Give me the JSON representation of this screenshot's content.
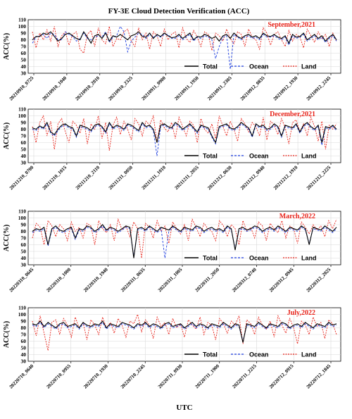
{
  "figure": {
    "title": "FY-3E Cloud Detection Verification (ACC)",
    "xlabel": "UTC"
  },
  "colors": {
    "total": "#000000",
    "ocean": "#1f3fe0",
    "land": "#e8241b",
    "season": "#e8241b",
    "grid": "#d9d9d9"
  },
  "legend": [
    "Total",
    "Ocean",
    "Land"
  ],
  "chart_data": [
    {
      "type": "line",
      "season": "September,2021",
      "ylabel": "ACC(%)",
      "ylim": [
        30,
        110
      ],
      "yticks": [
        30,
        40,
        50,
        60,
        70,
        80,
        90,
        100,
        110
      ],
      "grid": true,
      "legend_position": "bottom-right",
      "xticks": [
        "20210910_0725",
        "20210910_1040",
        "20210910_2010",
        "20210910_2325",
        "20210911_0900",
        "20210911_1950",
        "20210911_2305",
        "20210912_0835",
        "20210912_1930",
        "20210912_2245"
      ],
      "series": [
        {
          "name": "Total",
          "values": [
            80,
            85,
            85,
            90,
            88,
            92,
            85,
            78,
            82,
            88,
            90,
            86,
            82,
            80,
            92,
            84,
            75,
            86,
            88,
            82,
            90,
            78,
            86,
            84,
            88,
            84,
            80,
            86,
            88,
            92,
            85,
            84,
            90,
            82,
            88,
            85,
            90,
            86,
            83,
            84,
            88,
            82,
            86,
            90,
            80,
            85,
            84,
            88,
            86,
            82,
            85,
            78,
            86,
            88,
            82,
            90,
            85,
            82,
            86,
            88,
            84,
            86,
            82,
            90,
            86,
            85,
            88,
            84,
            82,
            86,
            75,
            88,
            84,
            85,
            90,
            80,
            84,
            88,
            82,
            86,
            78,
            84,
            88,
            80
          ]
        },
        {
          "name": "Ocean",
          "values": [
            75,
            84,
            86,
            88,
            82,
            90,
            88,
            80,
            80,
            92,
            88,
            85,
            78,
            82,
            90,
            82,
            80,
            84,
            86,
            84,
            92,
            76,
            84,
            86,
            100,
            92,
            62,
            78,
            84,
            90,
            88,
            82,
            88,
            84,
            86,
            84,
            88,
            88,
            82,
            82,
            86,
            80,
            84,
            88,
            78,
            84,
            82,
            86,
            84,
            80,
            52,
            70,
            84,
            86,
            36,
            88,
            84,
            80,
            84,
            86,
            82,
            84,
            80,
            88,
            84,
            84,
            86,
            82,
            80,
            84,
            72,
            86,
            82,
            84,
            88,
            78,
            82,
            86,
            80,
            84,
            76,
            82,
            86,
            78
          ]
        },
        {
          "name": "Land",
          "values": [
            92,
            68,
            90,
            80,
            95,
            78,
            100,
            70,
            86,
            92,
            72,
            88,
            92,
            66,
            60,
            88,
            94,
            70,
            98,
            80,
            74,
            100,
            70,
            82,
            80,
            92,
            96,
            78,
            70,
            98,
            80,
            90,
            66,
            92,
            86,
            70,
            96,
            80,
            88,
            92,
            68,
            98,
            82,
            76,
            94,
            84,
            70,
            92,
            88,
            64,
            90,
            86,
            78,
            96,
            82,
            74,
            92,
            88,
            70,
            96,
            84,
            80,
            66,
            98,
            90,
            72,
            88,
            92,
            80,
            70,
            94,
            78,
            88,
            84,
            68,
            96,
            86,
            76,
            92,
            82,
            88,
            70,
            90,
            78
          ]
        }
      ]
    },
    {
      "type": "line",
      "season": "December,2021",
      "ylabel": "ACC(%)",
      "ylim": [
        30,
        110
      ],
      "yticks": [
        30,
        40,
        50,
        60,
        70,
        80,
        90,
        100,
        110
      ],
      "grid": true,
      "legend_position": "bottom-right",
      "xticks": [
        "20211210_0700",
        "20211210_1015",
        "20211210_2110",
        "20211211_0050",
        "20211211_1010",
        "20211211_2055",
        "20211212_0630",
        "20211212_0940",
        "20211212_1910",
        "20211212_2225"
      ],
      "series": [
        {
          "name": "Total",
          "values": [
            82,
            80,
            85,
            82,
            90,
            76,
            72,
            80,
            86,
            88,
            84,
            82,
            70,
            86,
            84,
            82,
            78,
            86,
            88,
            84,
            76,
            90,
            82,
            86,
            84,
            80,
            88,
            86,
            82,
            78,
            90,
            84,
            86,
            80,
            60,
            86,
            88,
            84,
            82,
            90,
            86,
            80,
            84,
            88,
            82,
            76,
            86,
            84,
            82,
            70,
            60,
            84,
            86,
            88,
            82,
            80,
            84,
            90,
            86,
            82,
            70,
            88,
            84,
            86,
            80,
            82,
            88,
            84,
            70,
            86,
            84,
            82,
            88,
            76,
            86,
            90,
            84,
            80,
            86,
            60,
            84,
            82,
            86,
            80
          ]
        },
        {
          "name": "Ocean",
          "values": [
            80,
            78,
            84,
            80,
            88,
            74,
            70,
            78,
            84,
            86,
            82,
            80,
            68,
            84,
            82,
            80,
            76,
            84,
            86,
            82,
            74,
            88,
            80,
            84,
            82,
            78,
            86,
            84,
            80,
            76,
            88,
            82,
            84,
            78,
            40,
            84,
            86,
            82,
            80,
            88,
            84,
            78,
            82,
            86,
            80,
            74,
            84,
            82,
            80,
            68,
            58,
            82,
            84,
            86,
            80,
            78,
            82,
            88,
            84,
            80,
            68,
            86,
            82,
            84,
            78,
            80,
            86,
            82,
            68,
            84,
            82,
            80,
            86,
            74,
            84,
            88,
            82,
            78,
            84,
            56,
            82,
            80,
            84,
            78
          ]
        },
        {
          "name": "Land",
          "values": [
            84,
            60,
            90,
            100,
            70,
            92,
            50,
            88,
            96,
            76,
            60,
            92,
            86,
            74,
            96,
            58,
            88,
            80,
            100,
            66,
            90,
            48,
            86,
            98,
            72,
            92,
            80,
            64,
            96,
            88,
            70,
            92,
            86,
            100,
            60,
            94,
            82,
            76,
            90,
            66,
            98,
            84,
            70,
            92,
            86,
            60,
            96,
            80,
            74,
            88,
            66,
            100,
            84,
            70,
            92,
            80,
            62,
            96,
            88,
            76,
            90,
            84,
            70,
            98,
            64,
            92,
            86,
            72,
            96,
            82,
            58,
            90,
            94,
            76,
            88,
            70,
            98,
            84,
            62,
            92,
            50,
            86,
            80,
            88
          ]
        }
      ]
    },
    {
      "type": "line",
      "season": "March,2022",
      "ylabel": "ACC(%)",
      "ylim": [
        30,
        110
      ],
      "yticks": [
        30,
        40,
        50,
        60,
        70,
        80,
        90,
        100,
        110
      ],
      "grid": true,
      "legend_position": "bottom-right",
      "xticks": [
        "20220310_0645",
        "20220310_1000",
        "20220310_1940",
        "20220311_0635",
        "20220311_1005",
        "20220311_2050",
        "20220312_0740",
        "20220312_0945",
        "20220312_2025"
      ],
      "series": [
        {
          "name": "Total",
          "values": [
            80,
            84,
            82,
            86,
            60,
            84,
            88,
            82,
            80,
            84,
            86,
            70,
            84,
            82,
            88,
            86,
            80,
            84,
            90,
            82,
            86,
            84,
            80,
            84,
            88,
            86,
            40,
            84,
            86,
            82,
            88,
            84,
            80,
            86,
            84,
            82,
            88,
            84,
            80,
            86,
            84,
            82,
            88,
            86,
            80,
            84,
            86,
            82,
            84,
            80,
            88,
            84,
            52,
            84,
            86,
            82,
            84,
            88,
            86,
            80,
            84,
            86,
            82,
            88,
            84,
            80,
            86,
            84,
            82,
            88,
            84,
            60,
            86,
            84,
            82,
            88,
            84,
            80,
            86
          ]
        },
        {
          "name": "Ocean",
          "values": [
            78,
            82,
            80,
            84,
            58,
            82,
            86,
            80,
            78,
            82,
            84,
            68,
            82,
            80,
            86,
            84,
            78,
            82,
            88,
            80,
            84,
            82,
            78,
            82,
            86,
            84,
            42,
            82,
            84,
            80,
            86,
            82,
            78,
            84,
            40,
            80,
            86,
            82,
            78,
            84,
            82,
            80,
            86,
            84,
            78,
            82,
            84,
            80,
            82,
            78,
            86,
            82,
            54,
            82,
            84,
            80,
            82,
            86,
            84,
            78,
            82,
            84,
            80,
            86,
            82,
            78,
            84,
            82,
            80,
            86,
            82,
            62,
            84,
            82,
            80,
            86,
            82,
            78,
            84
          ]
        },
        {
          "name": "Land",
          "values": [
            70,
            92,
            86,
            60,
            96,
            88,
            72,
            90,
            84,
            66,
            94,
            80,
            86,
            70,
            92,
            88,
            60,
            96,
            84,
            78,
            90,
            66,
            98,
            82,
            88,
            72,
            94,
            84,
            40,
            92,
            86,
            70,
            96,
            80,
            88,
            62,
            94,
            84,
            76,
            90,
            66,
            98,
            86,
            72,
            92,
            84,
            80,
            66,
            96,
            88,
            72,
            90,
            84,
            60,
            96,
            80,
            86,
            70,
            94,
            88,
            66,
            92,
            84,
            78,
            96,
            70,
            88,
            84,
            62,
            94,
            86,
            76,
            90,
            82,
            88,
            72,
            96,
            84,
            98
          ]
        }
      ]
    },
    {
      "type": "line",
      "season": "July,2022",
      "ylabel": "ACC(%)",
      "ylim": [
        30,
        110
      ],
      "yticks": [
        30,
        40,
        50,
        60,
        70,
        80,
        90,
        100,
        110
      ],
      "grid": true,
      "legend_position": "bottom-right",
      "xticks": [
        "20220710_0640",
        "20220710_0955",
        "20220710_1930",
        "20220710_2245",
        "20220711_0930",
        "20220711_1900",
        "20220711_2215",
        "20220712_0915",
        "20220712_1845"
      ],
      "series": [
        {
          "name": "Total",
          "values": [
            86,
            84,
            90,
            82,
            88,
            84,
            80,
            86,
            88,
            82,
            84,
            86,
            80,
            88,
            84,
            82,
            86,
            84,
            90,
            80,
            86,
            84,
            82,
            88,
            86,
            84,
            80,
            86,
            84,
            88,
            82,
            86,
            84,
            80,
            86,
            88,
            82,
            84,
            86,
            80,
            84,
            88,
            82,
            86,
            84,
            80,
            86,
            84,
            82,
            88,
            84,
            80,
            86,
            84,
            58,
            86,
            84,
            82,
            88,
            84,
            80,
            86,
            84,
            82,
            88,
            86,
            80,
            84,
            86,
            82,
            88,
            84,
            80,
            86,
            84,
            82,
            88,
            84,
            86
          ]
        },
        {
          "name": "Ocean",
          "values": [
            84,
            82,
            88,
            80,
            86,
            82,
            78,
            84,
            86,
            80,
            82,
            84,
            78,
            86,
            82,
            80,
            84,
            82,
            88,
            78,
            84,
            82,
            80,
            86,
            84,
            82,
            78,
            84,
            82,
            86,
            80,
            84,
            82,
            78,
            84,
            86,
            80,
            82,
            84,
            78,
            82,
            86,
            80,
            84,
            82,
            78,
            84,
            82,
            80,
            86,
            82,
            78,
            84,
            82,
            60,
            84,
            82,
            80,
            86,
            82,
            78,
            84,
            82,
            80,
            86,
            84,
            78,
            82,
            84,
            80,
            86,
            82,
            78,
            84,
            82,
            80,
            86,
            82,
            84
          ]
        },
        {
          "name": "Land",
          "values": [
            90,
            68,
            98,
            72,
            46,
            88,
            92,
            70,
            94,
            84,
            66,
            96,
            80,
            88,
            62,
            92,
            84,
            70,
            96,
            80,
            88,
            72,
            94,
            84,
            66,
            90,
            86,
            100,
            74,
            92,
            84,
            64,
            96,
            82,
            88,
            70,
            94,
            80,
            86,
            66,
            92,
            84,
            78,
            96,
            70,
            88,
            84,
            62,
            94,
            86,
            72,
            90,
            84,
            98,
            56,
            92,
            86,
            70,
            96,
            84,
            78,
            90,
            66,
            98,
            84,
            72,
            94,
            80,
            56,
            90,
            84,
            70,
            96,
            82,
            88,
            64,
            92,
            86,
            70
          ]
        }
      ]
    }
  ]
}
